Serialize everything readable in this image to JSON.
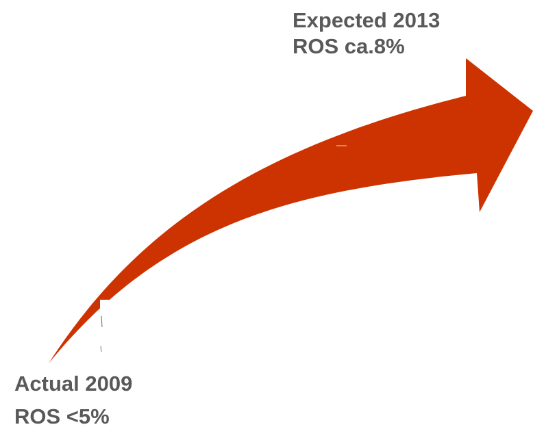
{
  "diagram": {
    "target": {
      "line1": "Expected 2013",
      "line2": "ROS ca.8%"
    },
    "origin": {
      "line1": "Actual 2009",
      "line2": "ROS <5%"
    },
    "colors": {
      "arrow": "#cc3300",
      "text": "#595959",
      "background": "#ffffff"
    }
  }
}
